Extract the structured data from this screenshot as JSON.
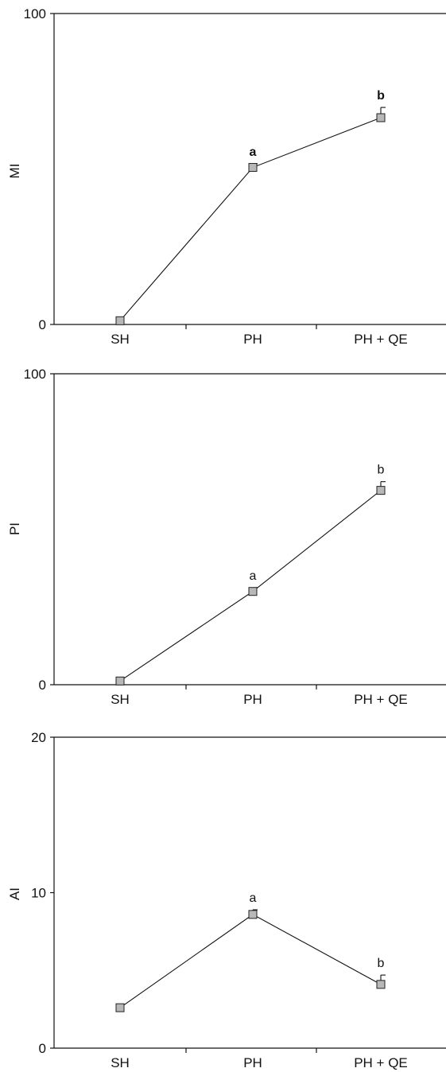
{
  "chart_data": [
    {
      "type": "line",
      "categories": [
        "SH",
        "PH",
        "PH + QE"
      ],
      "ylabel": "MI",
      "ylim": [
        0,
        100
      ],
      "yticks": [
        0,
        100
      ],
      "values": [
        1.2,
        50.5,
        66.5
      ],
      "errors": [
        0,
        1.2,
        3.3
      ],
      "annotations": [
        "",
        "a",
        "b"
      ],
      "annotation_bold": true,
      "grid": false
    },
    {
      "type": "line",
      "categories": [
        "SH",
        "PH",
        "PH + QE"
      ],
      "ylabel": "PI",
      "ylim": [
        0,
        100
      ],
      "yticks": [
        0,
        100
      ],
      "values": [
        1.2,
        30,
        62.5
      ],
      "errors": [
        0,
        1.2,
        2.8
      ],
      "annotations": [
        "",
        "a",
        "b"
      ],
      "annotation_bold": false,
      "grid": false
    },
    {
      "type": "line",
      "categories": [
        "SH",
        "PH",
        "PH + QE"
      ],
      "ylabel": "AI",
      "ylim": [
        0,
        20
      ],
      "yticks": [
        0,
        10,
        20
      ],
      "values": [
        2.6,
        8.6,
        4.1
      ],
      "errors": [
        0,
        0.3,
        0.6
      ],
      "annotations": [
        "",
        "a",
        "b"
      ],
      "annotation_bold": false,
      "grid": false
    }
  ],
  "colors": {
    "marker_fill": "#b8b8b8",
    "line": "#111111"
  }
}
